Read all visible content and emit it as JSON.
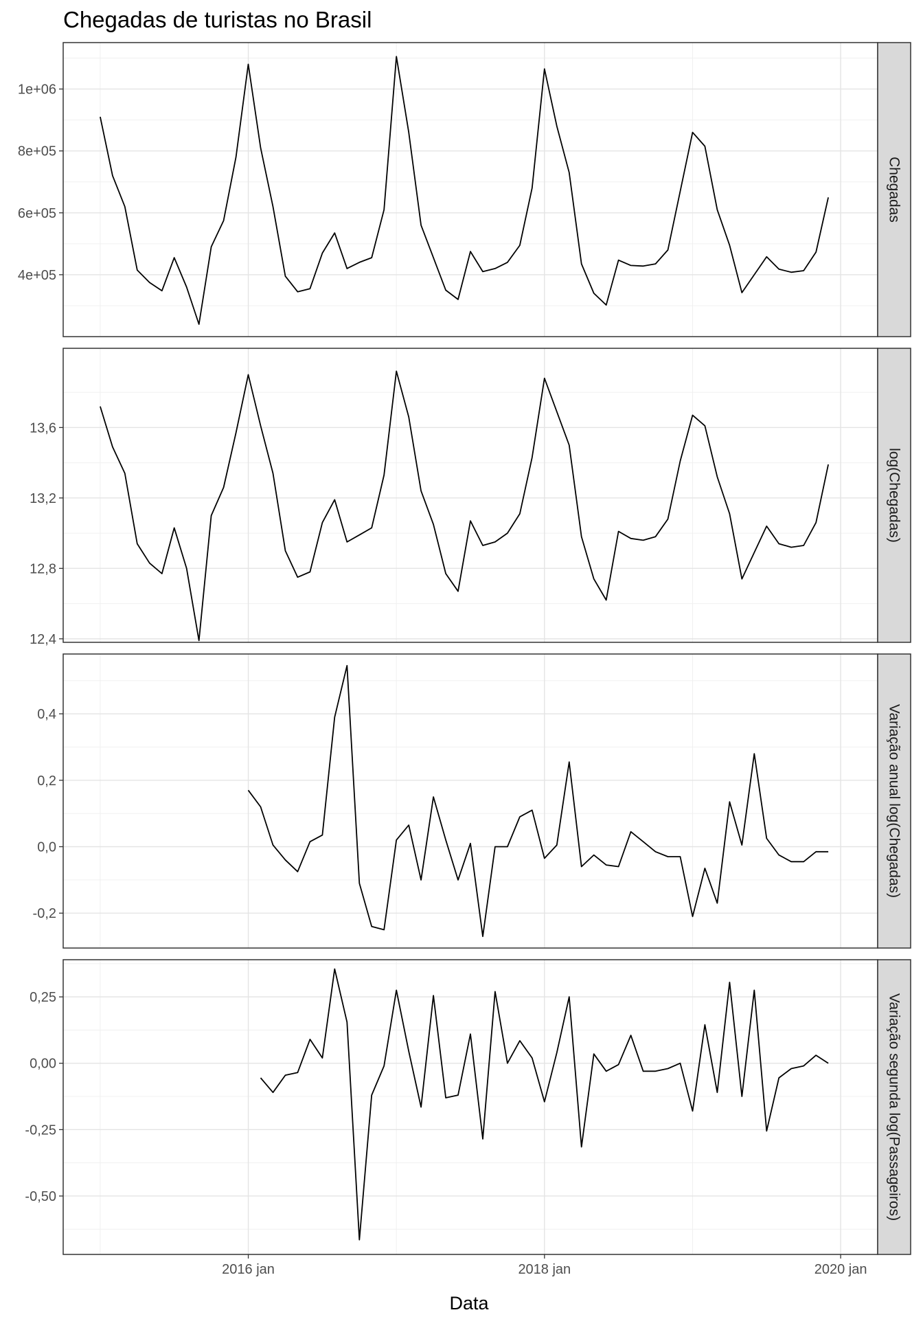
{
  "chart_data": {
    "type": "line",
    "title": "Chegadas de turistas no Brasil",
    "xlabel": "Data",
    "x_ticks": [
      "2016 jan",
      "2018 jan",
      "2020 jan"
    ],
    "x_tick_positions": [
      "2016-01",
      "2018-01",
      "2020-01"
    ],
    "x": [
      "2015-01",
      "2015-02",
      "2015-03",
      "2015-04",
      "2015-05",
      "2015-06",
      "2015-07",
      "2015-08",
      "2015-09",
      "2015-10",
      "2015-11",
      "2015-12",
      "2016-01",
      "2016-02",
      "2016-03",
      "2016-04",
      "2016-05",
      "2016-06",
      "2016-07",
      "2016-08",
      "2016-09",
      "2016-10",
      "2016-11",
      "2016-12",
      "2017-01",
      "2017-02",
      "2017-03",
      "2017-04",
      "2017-05",
      "2017-06",
      "2017-07",
      "2017-08",
      "2017-09",
      "2017-10",
      "2017-11",
      "2017-12",
      "2018-01",
      "2018-02",
      "2018-03",
      "2018-04",
      "2018-05",
      "2018-06",
      "2018-07",
      "2018-08",
      "2018-09",
      "2018-10",
      "2018-11",
      "2018-12",
      "2019-01",
      "2019-02",
      "2019-03",
      "2019-04",
      "2019-05",
      "2019-06",
      "2019-07",
      "2019-08",
      "2019-09",
      "2019-10",
      "2019-11",
      "2019-12"
    ],
    "xlim": [
      "2014-10",
      "2020-04"
    ],
    "grid": true,
    "line_color": "#000000",
    "panels": [
      {
        "strip": "Chegadas",
        "ylim": [
          200000,
          1150000
        ],
        "y_ticks": [
          400000,
          600000,
          800000,
          1000000
        ],
        "y_tick_labels": [
          "4e+05",
          "6e+05",
          "8e+05",
          "1e+06"
        ],
        "values": [
          910000,
          720000,
          620000,
          415000,
          375000,
          348000,
          455000,
          360000,
          240000,
          490000,
          575000,
          780000,
          1080000,
          810000,
          620000,
          395000,
          345000,
          355000,
          470000,
          535000,
          420000,
          440000,
          455000,
          610000,
          1105000,
          860000,
          560000,
          455000,
          350000,
          320000,
          475000,
          410000,
          420000,
          440000,
          495000,
          680000,
          1065000,
          880000,
          730000,
          435000,
          340000,
          302000,
          447000,
          430000,
          428000,
          435000,
          480000,
          670000,
          860000,
          815000,
          610000,
          495000,
          342000,
          400000,
          458000,
          418000,
          408000,
          413000,
          473000,
          650000
        ]
      },
      {
        "strip": "log(Chegadas)",
        "ylim": [
          12.38,
          14.05
        ],
        "y_ticks": [
          12.4,
          12.8,
          13.2,
          13.6
        ],
        "y_tick_labels": [
          "12,4",
          "12,8",
          "13,2",
          "13,6"
        ],
        "values": [
          13.72,
          13.49,
          13.34,
          12.94,
          12.83,
          12.77,
          13.03,
          12.8,
          12.39,
          13.1,
          13.26,
          13.57,
          13.9,
          13.61,
          13.34,
          12.9,
          12.75,
          12.78,
          13.06,
          13.19,
          12.95,
          12.99,
          13.03,
          13.33,
          13.92,
          13.66,
          13.24,
          13.05,
          12.77,
          12.67,
          13.07,
          12.93,
          12.95,
          13.0,
          13.11,
          13.43,
          13.88,
          13.69,
          13.5,
          12.98,
          12.74,
          12.62,
          13.01,
          12.97,
          12.96,
          12.98,
          13.08,
          13.41,
          13.67,
          13.61,
          13.32,
          13.11,
          12.74,
          12.89,
          13.04,
          12.94,
          12.92,
          12.93,
          13.06,
          13.39
        ]
      },
      {
        "strip": "Variação anual log(Chegadas)",
        "ylim": [
          -0.305,
          0.58
        ],
        "y_ticks": [
          -0.2,
          0.0,
          0.2,
          0.4
        ],
        "y_tick_labels": [
          "-0,2",
          "0,0",
          "0,2",
          "0,4"
        ],
        "values": [
          null,
          null,
          null,
          null,
          null,
          null,
          null,
          null,
          null,
          null,
          null,
          null,
          0.17,
          0.12,
          0.005,
          -0.04,
          -0.075,
          0.015,
          0.035,
          0.39,
          0.545,
          -0.11,
          -0.24,
          -0.25,
          0.02,
          0.065,
          -0.1,
          0.15,
          0.02,
          -0.1,
          0.01,
          -0.27,
          0.0,
          0.0,
          0.09,
          0.11,
          -0.035,
          0.005,
          0.255,
          -0.06,
          -0.025,
          -0.055,
          -0.06,
          0.045,
          0.015,
          -0.015,
          -0.03,
          -0.03,
          -0.21,
          -0.065,
          -0.17,
          0.135,
          0.005,
          0.28,
          0.025,
          -0.025,
          -0.045,
          -0.045,
          -0.015,
          -0.015
        ]
      },
      {
        "strip": "Variação segunda log(Passageiros)",
        "ylim": [
          -0.72,
          0.39
        ],
        "y_ticks": [
          -0.5,
          -0.25,
          0.0,
          0.25
        ],
        "y_tick_labels": [
          "-0,50",
          "-0,25",
          "0,00",
          "0,25"
        ],
        "values": [
          null,
          null,
          null,
          null,
          null,
          null,
          null,
          null,
          null,
          null,
          null,
          null,
          null,
          -0.055,
          -0.11,
          -0.045,
          -0.035,
          0.09,
          0.02,
          0.355,
          0.155,
          -0.665,
          -0.12,
          -0.01,
          0.275,
          0.045,
          -0.165,
          0.255,
          -0.13,
          -0.12,
          0.11,
          -0.285,
          0.27,
          0.0,
          0.085,
          0.02,
          -0.145,
          0.04,
          0.25,
          -0.315,
          0.035,
          -0.03,
          -0.005,
          0.105,
          -0.03,
          -0.03,
          -0.02,
          0.0,
          -0.18,
          0.145,
          -0.11,
          0.305,
          -0.125,
          0.275,
          -0.255,
          -0.055,
          -0.02,
          -0.01,
          0.03,
          0.0
        ]
      }
    ]
  }
}
